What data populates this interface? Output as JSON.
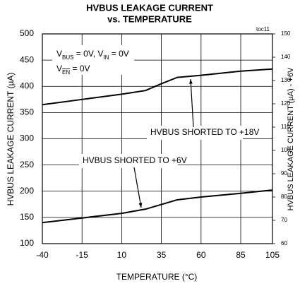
{
  "chart_data": {
    "type": "line",
    "title": "HVBUS LEAKAGE CURRENT",
    "subtitle": "vs. TEMPERATURE",
    "figure_id": "toc11",
    "xlabel": "TEMPERATURE (°C)",
    "ylabel": "HVBUS LEAKAGE CURRENT (µA)",
    "y2label": "HVBUS LEAKAGE CURRENT (µA) - +6V",
    "conditions": [
      [
        "V",
        "BUS",
        " = 0V, V",
        "IN",
        " = 0V"
      ],
      [
        "V",
        "EN",
        " = 0V"
      ]
    ],
    "x": [
      -40,
      -15,
      10,
      25,
      35,
      45,
      60,
      85,
      105
    ],
    "series": [
      {
        "name": "HVBUS SHORTED TO +18V",
        "color": "#000000",
        "values": [
          365,
          375,
          385,
          392,
          405,
          417,
          421,
          429,
          433
        ]
      },
      {
        "name": "HVBUS SHORTED TO +6V",
        "color": "#000000",
        "axis": "y2",
        "values": [
          69,
          71,
          73,
          74.8,
          76.8,
          78.8,
          80,
          81.6,
          83
        ]
      }
    ],
    "xlim": [
      -40,
      105
    ],
    "xticks": [
      -40,
      -15,
      10,
      35,
      60,
      85,
      105
    ],
    "ylim": [
      100,
      500
    ],
    "yticks": [
      100,
      150,
      200,
      250,
      300,
      350,
      400,
      450,
      500
    ],
    "y2lim": [
      60,
      150
    ],
    "y2ticks": [
      60,
      70,
      80,
      90,
      100,
      110,
      120,
      130,
      140,
      150
    ],
    "grid": true
  }
}
